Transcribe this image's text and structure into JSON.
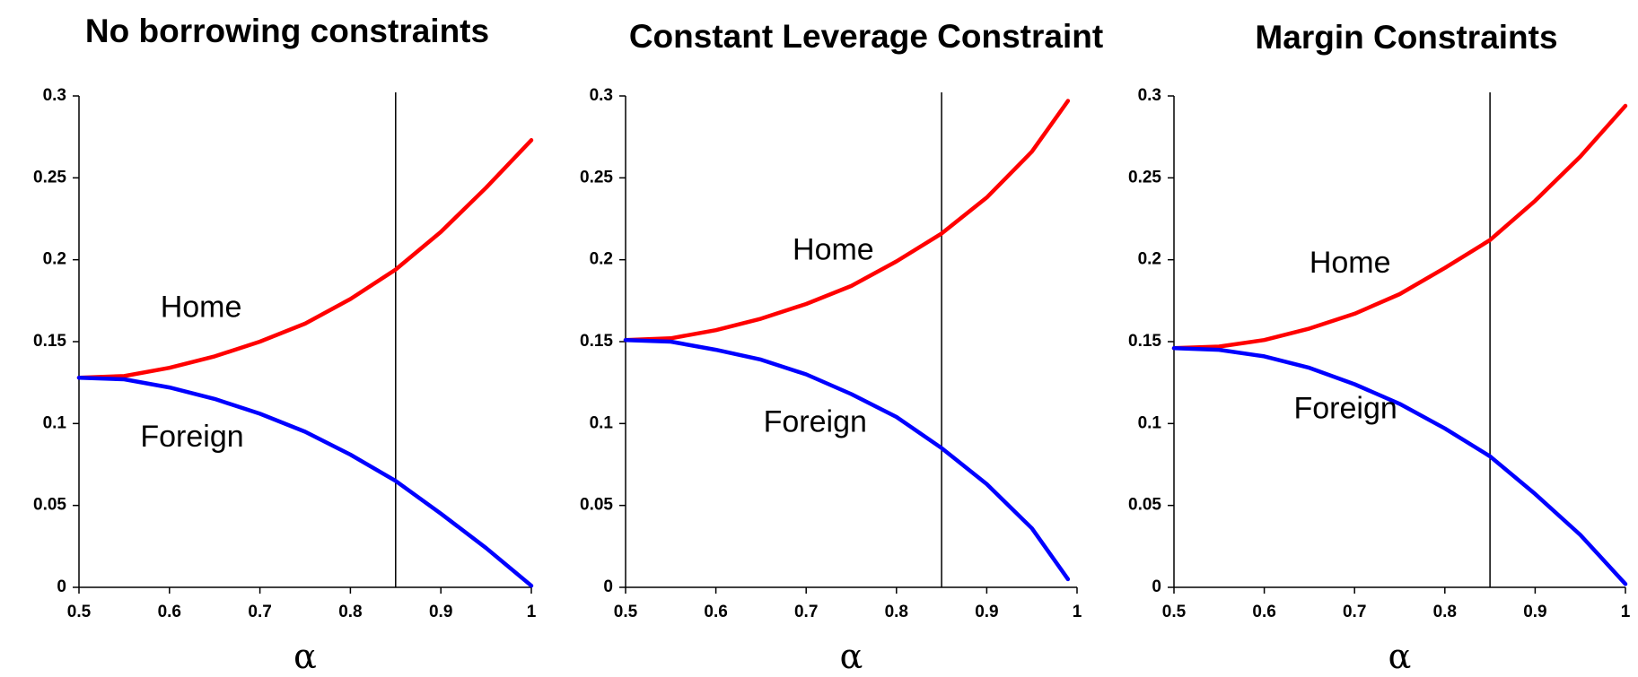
{
  "chart_data": [
    {
      "type": "line",
      "title": "No borrowing constraints",
      "xlabel": "α",
      "ylabel": "",
      "xlim": [
        0.5,
        1
      ],
      "ylim": [
        0,
        0.3
      ],
      "xticks": [
        0.5,
        0.6,
        0.7,
        0.8,
        0.9,
        1
      ],
      "xtick_labels": [
        "0.5",
        "0.6",
        "0.7",
        "0.8",
        "0.9",
        "1"
      ],
      "yticks": [
        0,
        0.05,
        0.1,
        0.15,
        0.2,
        0.25,
        0.3
      ],
      "ytick_labels": [
        "0",
        "0.05",
        "0.1",
        "0.15",
        "0.2",
        "0.25",
        "0.3"
      ],
      "grid": false,
      "vline": 0.85,
      "series": [
        {
          "name": "Home",
          "color": "#ff0000",
          "x": [
            0.5,
            0.55,
            0.6,
            0.65,
            0.7,
            0.75,
            0.8,
            0.85,
            0.9,
            0.95,
            1.0
          ],
          "y": [
            0.128,
            0.129,
            0.134,
            0.141,
            0.15,
            0.161,
            0.176,
            0.194,
            0.217,
            0.244,
            0.273
          ]
        },
        {
          "name": "Foreign",
          "color": "#0000ff",
          "x": [
            0.5,
            0.55,
            0.6,
            0.65,
            0.7,
            0.75,
            0.8,
            0.85,
            0.9,
            0.95,
            1.0
          ],
          "y": [
            0.128,
            0.127,
            0.122,
            0.115,
            0.106,
            0.095,
            0.081,
            0.065,
            0.045,
            0.024,
            0.001
          ]
        }
      ]
    },
    {
      "type": "line",
      "title": "Constant Leverage Constraint",
      "xlabel": "α",
      "ylabel": "",
      "xlim": [
        0.5,
        1
      ],
      "ylim": [
        0,
        0.3
      ],
      "xticks": [
        0.5,
        0.6,
        0.7,
        0.8,
        0.9,
        1
      ],
      "xtick_labels": [
        "0.5",
        "0.6",
        "0.7",
        "0.8",
        "0.9",
        "1"
      ],
      "yticks": [
        0,
        0.05,
        0.1,
        0.15,
        0.2,
        0.25,
        0.3
      ],
      "ytick_labels": [
        "0",
        "0.05",
        "0.1",
        "0.15",
        "0.2",
        "0.25",
        "0.3"
      ],
      "grid": false,
      "vline": 0.85,
      "series": [
        {
          "name": "Home",
          "color": "#ff0000",
          "x": [
            0.5,
            0.55,
            0.6,
            0.65,
            0.7,
            0.75,
            0.8,
            0.85,
            0.9,
            0.95,
            0.99
          ],
          "y": [
            0.151,
            0.152,
            0.157,
            0.164,
            0.173,
            0.184,
            0.199,
            0.216,
            0.238,
            0.266,
            0.297
          ]
        },
        {
          "name": "Foreign",
          "color": "#0000ff",
          "x": [
            0.5,
            0.55,
            0.6,
            0.65,
            0.7,
            0.75,
            0.8,
            0.85,
            0.9,
            0.95,
            0.99
          ],
          "y": [
            0.151,
            0.15,
            0.145,
            0.139,
            0.13,
            0.118,
            0.104,
            0.085,
            0.063,
            0.036,
            0.005
          ]
        }
      ]
    },
    {
      "type": "line",
      "title": "Margin Constraints",
      "xlabel": "α",
      "ylabel": "",
      "xlim": [
        0.5,
        1
      ],
      "ylim": [
        0,
        0.3
      ],
      "xticks": [
        0.5,
        0.6,
        0.7,
        0.8,
        0.9,
        1
      ],
      "xtick_labels": [
        "0.5",
        "0.6",
        "0.7",
        "0.8",
        "0.9",
        "1"
      ],
      "yticks": [
        0,
        0.05,
        0.1,
        0.15,
        0.2,
        0.25,
        0.3
      ],
      "ytick_labels": [
        "0",
        "0.05",
        "0.1",
        "0.15",
        "0.2",
        "0.25",
        "0.3"
      ],
      "grid": false,
      "vline": 0.85,
      "series": [
        {
          "name": "Home",
          "color": "#ff0000",
          "x": [
            0.5,
            0.55,
            0.6,
            0.65,
            0.7,
            0.75,
            0.8,
            0.85,
            0.9,
            0.95,
            1.0
          ],
          "y": [
            0.146,
            0.147,
            0.151,
            0.158,
            0.167,
            0.179,
            0.195,
            0.212,
            0.236,
            0.263,
            0.294
          ]
        },
        {
          "name": "Foreign",
          "color": "#0000ff",
          "x": [
            0.5,
            0.55,
            0.6,
            0.65,
            0.7,
            0.75,
            0.8,
            0.85,
            0.9,
            0.95,
            1.0
          ],
          "y": [
            0.146,
            0.145,
            0.141,
            0.134,
            0.124,
            0.112,
            0.097,
            0.08,
            0.057,
            0.032,
            0.002
          ]
        }
      ]
    }
  ]
}
